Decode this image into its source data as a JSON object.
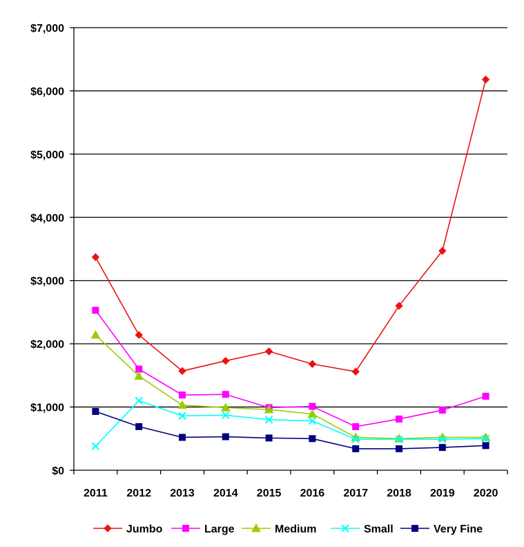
{
  "chart_data": {
    "type": "line",
    "title": "",
    "xlabel": "",
    "ylabel": "",
    "categories": [
      "2011",
      "2012",
      "2013",
      "2014",
      "2015",
      "2016",
      "2017",
      "2018",
      "2019",
      "2020"
    ],
    "ylim": [
      0,
      7000
    ],
    "y_ticks": [
      0,
      1000,
      2000,
      3000,
      4000,
      5000,
      6000,
      7000
    ],
    "y_tick_labels": [
      "$0",
      "$1,000",
      "$2,000",
      "$3,000",
      "$4,000",
      "$5,000",
      "$6,000",
      "$7,000"
    ],
    "grid": "horizontal",
    "legend_position": "bottom",
    "series": [
      {
        "name": "Jumbo",
        "color": "#ee1111",
        "marker": "diamond",
        "values": [
          3370,
          2140,
          1570,
          1730,
          1880,
          1680,
          1560,
          2600,
          3470,
          6180
        ]
      },
      {
        "name": "Large",
        "color": "#ff00ff",
        "marker": "square",
        "values": [
          2530,
          1600,
          1190,
          1200,
          990,
          1010,
          690,
          810,
          950,
          1170
        ]
      },
      {
        "name": "Medium",
        "color": "#99cc00",
        "marker": "triangle",
        "values": [
          2140,
          1490,
          1030,
          990,
          960,
          890,
          520,
          500,
          520,
          520
        ]
      },
      {
        "name": "Small",
        "color": "#00ffff",
        "marker": "x",
        "values": [
          380,
          1100,
          860,
          870,
          800,
          780,
          490,
          490,
          490,
          500
        ]
      },
      {
        "name": "Very Fine",
        "color": "#000080",
        "marker": "square",
        "values": [
          930,
          690,
          520,
          530,
          510,
          500,
          340,
          340,
          360,
          390
        ]
      }
    ]
  }
}
